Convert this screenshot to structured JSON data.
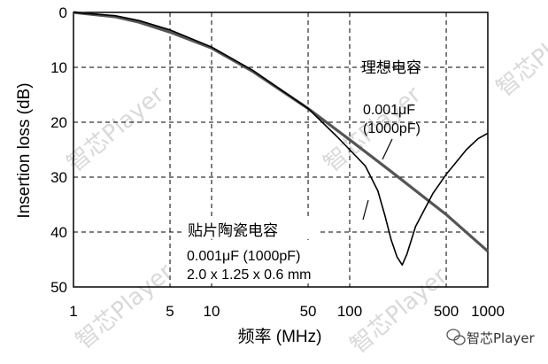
{
  "chart_data": {
    "type": "line",
    "xscale": "log",
    "xlim": [
      1,
      1000
    ],
    "ylim": [
      0,
      50
    ],
    "y_inverted": true,
    "grid": true,
    "ylabel": "Insertion loss (dB)",
    "xlabel": "频率 (MHz)",
    "xticks": [
      {
        "value": 1,
        "label": "1"
      },
      {
        "value": 5,
        "label": "5"
      },
      {
        "value": 10,
        "label": "10"
      },
      {
        "value": 50,
        "label": "50"
      },
      {
        "value": 100,
        "label": "100"
      },
      {
        "value": 500,
        "label": "500"
      },
      {
        "value": 1000,
        "label": "1000"
      }
    ],
    "yticks": [
      {
        "value": 0,
        "label": "0"
      },
      {
        "value": 10,
        "label": "10"
      },
      {
        "value": 20,
        "label": "20"
      },
      {
        "value": 30,
        "label": "30"
      },
      {
        "value": 40,
        "label": "40"
      },
      {
        "value": 50,
        "label": "50"
      }
    ],
    "series": [
      {
        "color": "#555555",
        "points": [
          [
            1,
            0
          ],
          [
            2,
            0.8
          ],
          [
            3,
            1.8
          ],
          [
            5,
            3.6
          ],
          [
            10,
            6.5
          ],
          [
            20,
            10.8
          ],
          [
            50,
            17.5
          ],
          [
            100,
            23.2
          ],
          [
            200,
            29.0
          ],
          [
            500,
            36.8
          ],
          [
            1000,
            43.5
          ]
        ]
      },
      {
        "color": "#000000",
        "points": [
          [
            1,
            0
          ],
          [
            2,
            0.6
          ],
          [
            3,
            1.5
          ],
          [
            5,
            3.2
          ],
          [
            10,
            6.3
          ],
          [
            20,
            10.6
          ],
          [
            50,
            17.5
          ],
          [
            80,
            22.5
          ],
          [
            100,
            25.0
          ],
          [
            130,
            28.0
          ],
          [
            160,
            32.5
          ],
          [
            180,
            37.0
          ],
          [
            200,
            41.5
          ],
          [
            220,
            44.5
          ],
          [
            240,
            46.0
          ],
          [
            260,
            44.0
          ],
          [
            300,
            39.0
          ],
          [
            400,
            33.0
          ],
          [
            500,
            29.5
          ],
          [
            700,
            25.0
          ],
          [
            850,
            23.0
          ],
          [
            1000,
            22.0
          ]
        ]
      }
    ],
    "annotations": {
      "ideal_title": "理想电容",
      "ideal_value": "0.001μF",
      "ideal_value2": "(1000pF)",
      "smd_title": "贴片陶瓷电容",
      "smd_value": "0.001μF (1000pF)",
      "smd_size": "2.0 x 1.25 x 0.6 mm"
    }
  },
  "watermarks": [
    "智芯Player",
    "智芯Player",
    "智芯Player",
    "智芯Player",
    "智芯Player"
  ],
  "credit": {
    "text": "智芯Player",
    "icon": "wechat-icon"
  }
}
